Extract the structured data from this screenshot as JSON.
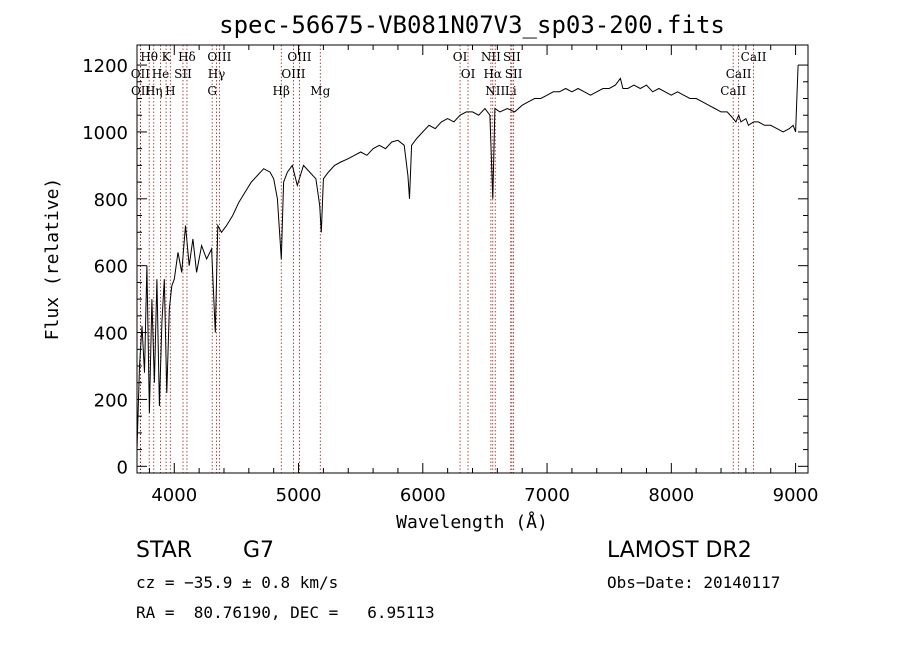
{
  "chart_data": {
    "type": "line",
    "title": "spec-56675-VB081N07V3_sp03-200.fits",
    "xlabel": "Wavelength (Å)",
    "ylabel": "Flux (relative)",
    "xlim": [
      3700,
      9100
    ],
    "ylim": [
      -20,
      1260
    ],
    "x_ticks": [
      4000,
      5000,
      6000,
      7000,
      8000,
      9000
    ],
    "y_ticks": [
      0,
      200,
      400,
      600,
      800,
      1000,
      1200
    ],
    "grid": false,
    "series": [
      {
        "x": [
          3700,
          3720,
          3740,
          3760,
          3780,
          3800,
          3820,
          3840,
          3860,
          3880,
          3900,
          3920,
          3940,
          3960,
          3980,
          4000,
          4030,
          4060,
          4090,
          4120,
          4150,
          4180,
          4220,
          4260,
          4300,
          4330,
          4350,
          4380,
          4420,
          4470,
          4520,
          4570,
          4620,
          4670,
          4720,
          4770,
          4800,
          4830,
          4861,
          4880,
          4910,
          4950,
          4990,
          5040,
          5090,
          5140,
          5170,
          5183,
          5200,
          5240,
          5290,
          5340,
          5400,
          5450,
          5500,
          5550,
          5600,
          5650,
          5700,
          5750,
          5800,
          5850,
          5880,
          5893,
          5910,
          5950,
          6000,
          6050,
          6100,
          6150,
          6200,
          6250,
          6300,
          6350,
          6400,
          6450,
          6500,
          6540,
          6563,
          6580,
          6620,
          6680,
          6740,
          6800,
          6850,
          6900,
          6950,
          7000,
          7050,
          7100,
          7150,
          7200,
          7250,
          7300,
          7350,
          7400,
          7450,
          7500,
          7550,
          7590,
          7610,
          7650,
          7700,
          7750,
          7800,
          7850,
          7900,
          7950,
          8000,
          8050,
          8100,
          8150,
          8200,
          8250,
          8300,
          8350,
          8400,
          8450,
          8498,
          8520,
          8542,
          8560,
          8600,
          8620,
          8662,
          8700,
          8750,
          8800,
          8850,
          8900,
          8950,
          8980,
          9000,
          9020
        ],
        "y": [
          50,
          300,
          420,
          280,
          600,
          160,
          500,
          250,
          560,
          180,
          430,
          560,
          220,
          470,
          540,
          560,
          640,
          580,
          720,
          600,
          680,
          580,
          660,
          620,
          650,
          400,
          720,
          700,
          720,
          750,
          790,
          820,
          850,
          870,
          890,
          880,
          860,
          800,
          620,
          850,
          880,
          900,
          840,
          900,
          880,
          860,
          780,
          700,
          860,
          880,
          900,
          910,
          920,
          930,
          940,
          930,
          950,
          960,
          950,
          970,
          975,
          960,
          870,
          800,
          960,
          980,
          1000,
          1020,
          1010,
          1030,
          1040,
          1030,
          1050,
          1060,
          1060,
          1050,
          1070,
          1050,
          800,
          1070,
          1060,
          1070,
          1060,
          1080,
          1090,
          1100,
          1100,
          1110,
          1120,
          1120,
          1130,
          1120,
          1130,
          1120,
          1110,
          1120,
          1130,
          1130,
          1140,
          1160,
          1130,
          1130,
          1140,
          1130,
          1140,
          1120,
          1130,
          1120,
          1110,
          1120,
          1110,
          1100,
          1100,
          1090,
          1080,
          1070,
          1060,
          1060,
          1040,
          1030,
          1050,
          1030,
          1040,
          1020,
          1030,
          1030,
          1020,
          1020,
          1010,
          1000,
          1010,
          1020,
          1000,
          1200
        ]
      }
    ]
  },
  "line_labels": [
    {
      "text": "Hθ",
      "wl": 3798,
      "row": 0
    },
    {
      "text": "K",
      "wl": 3934,
      "row": 0
    },
    {
      "text": "Hδ",
      "wl": 4102,
      "row": 0
    },
    {
      "text": "OIII",
      "wl": 4363,
      "row": 0
    },
    {
      "text": "OIII",
      "wl": 5007,
      "row": 0
    },
    {
      "text": "OI",
      "wl": 6300,
      "row": 0
    },
    {
      "text": "NII",
      "wl": 6548,
      "row": 0
    },
    {
      "text": "SII",
      "wl": 6717,
      "row": 0
    },
    {
      "text": "CaII",
      "wl": 8662,
      "row": 0
    },
    {
      "text": "OII",
      "wl": 3727,
      "row": 1
    },
    {
      "text": "He",
      "wl": 3889,
      "row": 1
    },
    {
      "text": "SII",
      "wl": 4070,
      "row": 1
    },
    {
      "text": "Hγ",
      "wl": 4340,
      "row": 1
    },
    {
      "text": "OIII",
      "wl": 4959,
      "row": 1
    },
    {
      "text": "OI",
      "wl": 6364,
      "row": 1
    },
    {
      "text": "Hα",
      "wl": 6563,
      "row": 1
    },
    {
      "text": "SII",
      "wl": 6731,
      "row": 1
    },
    {
      "text": "CaII",
      "wl": 8542,
      "row": 1
    },
    {
      "text": "OII",
      "wl": 3729,
      "row": 2
    },
    {
      "text": "Hη",
      "wl": 3835,
      "row": 2
    },
    {
      "text": "H",
      "wl": 3968,
      "row": 2
    },
    {
      "text": "G",
      "wl": 4305,
      "row": 2
    },
    {
      "text": "Hβ",
      "wl": 4861,
      "row": 2
    },
    {
      "text": "Mg",
      "wl": 5175,
      "row": 2
    },
    {
      "text": "NII",
      "wl": 6583,
      "row": 2
    },
    {
      "text": "Li",
      "wl": 6708,
      "row": 2
    },
    {
      "text": "CaII",
      "wl": 8498,
      "row": 2
    }
  ],
  "marker_lines": [
    3727,
    3729,
    3798,
    3835,
    3889,
    3934,
    3968,
    4070,
    4102,
    4305,
    4340,
    4363,
    4861,
    4959,
    5007,
    5175,
    6300,
    6364,
    6548,
    6563,
    6583,
    6708,
    6717,
    6731,
    8498,
    8542,
    8662
  ],
  "footer": {
    "object_type": "STAR",
    "subclass": "G7",
    "survey": "LAMOST DR2",
    "cz": "cz = −35.9 ± 0.8 km/s",
    "obs_date": "Obs−Date: 20140117",
    "coords": "RA =  80.76190, DEC =   6.95113"
  }
}
